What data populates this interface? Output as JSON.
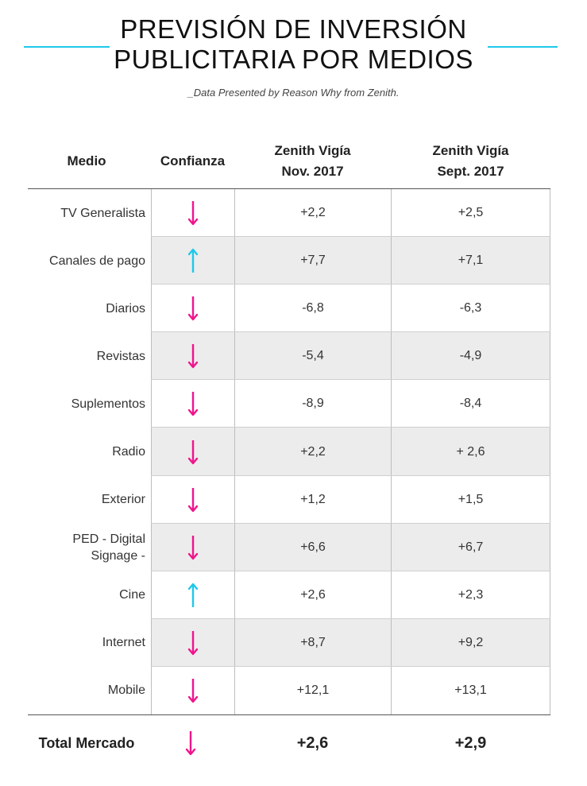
{
  "title_lines": [
    "PREVISIÓN DE INVERSIÓN",
    "PUBLICITARIA POR MEDIOS"
  ],
  "subtitle": "_Data Presented by Reason Why from Zenith.",
  "colors": {
    "down": "#f0148c",
    "up": "#1ec8ea",
    "accent_line": "#1ec8ea",
    "shade": "#ececec"
  },
  "chart_data": {
    "type": "table",
    "columns": [
      "Medio",
      "Confianza",
      "Zenith Vigía Nov. 2017",
      "Zenith Vigía Sept. 2017"
    ],
    "header": {
      "medio": "Medio",
      "confianza": "Confianza",
      "col1_line1": "Zenith Vigía",
      "col1_line2": "Nov. 2017",
      "col2_line1": "Zenith Vigía",
      "col2_line2": "Sept. 2017"
    },
    "rows": [
      {
        "medio": "TV Generalista",
        "confianza": "down",
        "nov": "+2,2",
        "sept": "+2,5"
      },
      {
        "medio": "Canales de pago",
        "confianza": "up",
        "nov": "+7,7",
        "sept": "+7,1"
      },
      {
        "medio": "Diarios",
        "confianza": "down",
        "nov": "-6,8",
        "sept": "-6,3"
      },
      {
        "medio": "Revistas",
        "confianza": "down",
        "nov": "-5,4",
        "sept": "-4,9"
      },
      {
        "medio": "Suplementos",
        "confianza": "down",
        "nov": "-8,9",
        "sept": "-8,4"
      },
      {
        "medio": "Radio",
        "confianza": "down",
        "nov": "+2,2",
        "sept": "+ 2,6"
      },
      {
        "medio": "Exterior",
        "confianza": "down",
        "nov": "+1,2",
        "sept": "+1,5"
      },
      {
        "medio": "PED - Digital Signage -",
        "medio_lines": [
          "PED - Digital",
          "Signage -"
        ],
        "confianza": "down",
        "nov": "+6,6",
        "sept": "+6,7"
      },
      {
        "medio": "Cine",
        "confianza": "up",
        "nov": "+2,6",
        "sept": "+2,3"
      },
      {
        "medio": "Internet",
        "confianza": "down",
        "nov": "+8,7",
        "sept": "+9,2"
      },
      {
        "medio": "Mobile",
        "confianza": "down",
        "nov": "+12,1",
        "sept": "+13,1"
      }
    ],
    "total": {
      "medio": "Total Mercado",
      "confianza": "down",
      "nov": "+2,6",
      "sept": "+2,9"
    }
  }
}
